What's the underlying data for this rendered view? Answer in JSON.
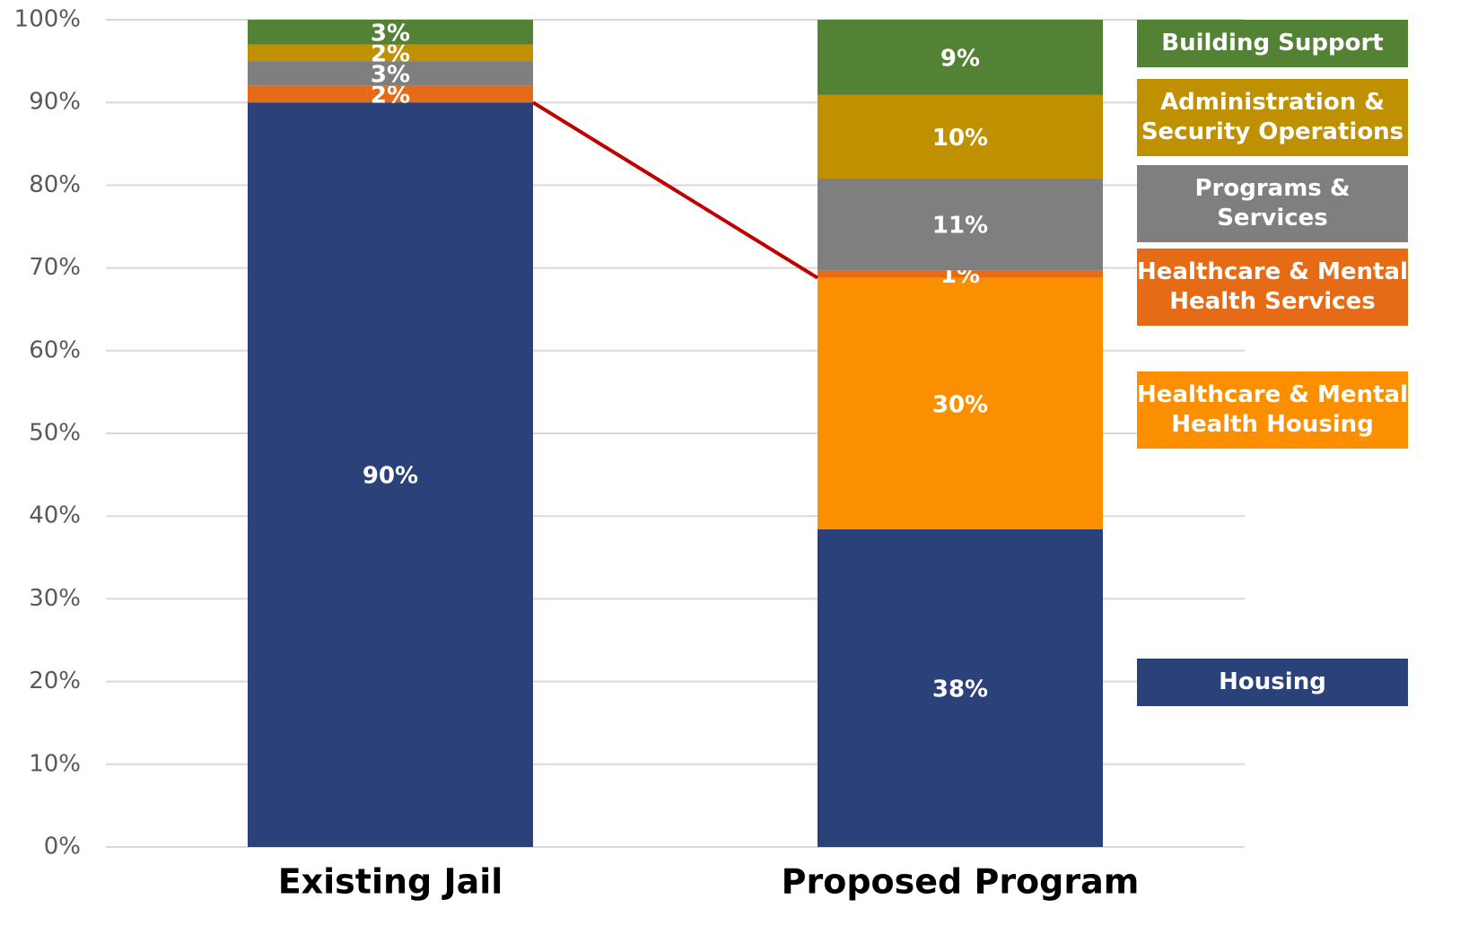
{
  "chart_data": {
    "type": "stacked_bar",
    "categories": [
      "Existing Jail",
      "Proposed Program"
    ],
    "series": [
      {
        "name": "Housing",
        "color": "#2a4279",
        "values": [
          90,
          38.4
        ],
        "value_labels": [
          "90%",
          "38%"
        ]
      },
      {
        "name": "Healthcare & Mental Health Housing",
        "color": "#fc8f00",
        "values": [
          null,
          30.4
        ],
        "value_labels": [
          null,
          "30%"
        ]
      },
      {
        "name": "Healthcare & Mental Health Services",
        "color": "#e56b17",
        "values": [
          2,
          0.9
        ],
        "value_labels": [
          "2%",
          "1%"
        ]
      },
      {
        "name": "Programs & Services",
        "color": "#7f7f7f",
        "values": [
          3,
          11.1
        ],
        "value_labels": [
          "3%",
          "11%"
        ]
      },
      {
        "name": "Administration & Security Operations",
        "color": "#bf9000",
        "values": [
          2,
          10.1
        ],
        "value_labels": [
          "2%",
          "10%"
        ]
      },
      {
        "name": "Building Support",
        "color": "#548235",
        "values": [
          3,
          9.1
        ],
        "value_labels": [
          "3%",
          "9%"
        ]
      }
    ],
    "connector_color": "#c00000",
    "ylim": [
      0,
      100
    ],
    "yticks": [
      {
        "value": 0,
        "label": "0%"
      },
      {
        "value": 10,
        "label": "10%"
      },
      {
        "value": 20,
        "label": "20%"
      },
      {
        "value": 30,
        "label": "30%"
      },
      {
        "value": 40,
        "label": "40%"
      },
      {
        "value": 50,
        "label": "50%"
      },
      {
        "value": 60,
        "label": "60%"
      },
      {
        "value": 70,
        "label": "70%"
      },
      {
        "value": 80,
        "label": "80%"
      },
      {
        "value": 90,
        "label": "90%"
      },
      {
        "value": 100,
        "label": "100%"
      }
    ],
    "grid": true
  }
}
